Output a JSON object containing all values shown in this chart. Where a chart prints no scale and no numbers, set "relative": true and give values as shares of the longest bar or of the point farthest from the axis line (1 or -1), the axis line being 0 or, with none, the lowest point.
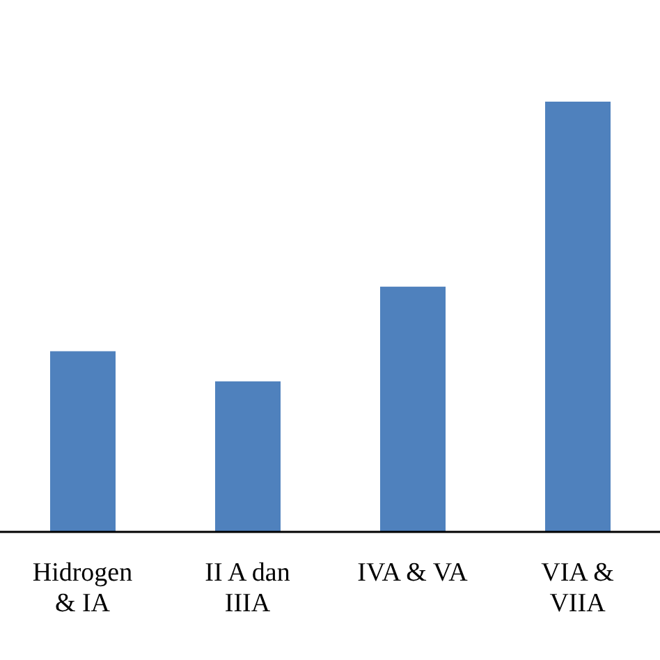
{
  "chart_data": {
    "type": "bar",
    "categories": [
      "Hidrogen & IA",
      "II A dan IIIA",
      "IVA & VA",
      "VIA & VIIA"
    ],
    "values": [
      0.42,
      0.35,
      0.57,
      1
    ],
    "color": "#4f81bd",
    "relative": true
  }
}
